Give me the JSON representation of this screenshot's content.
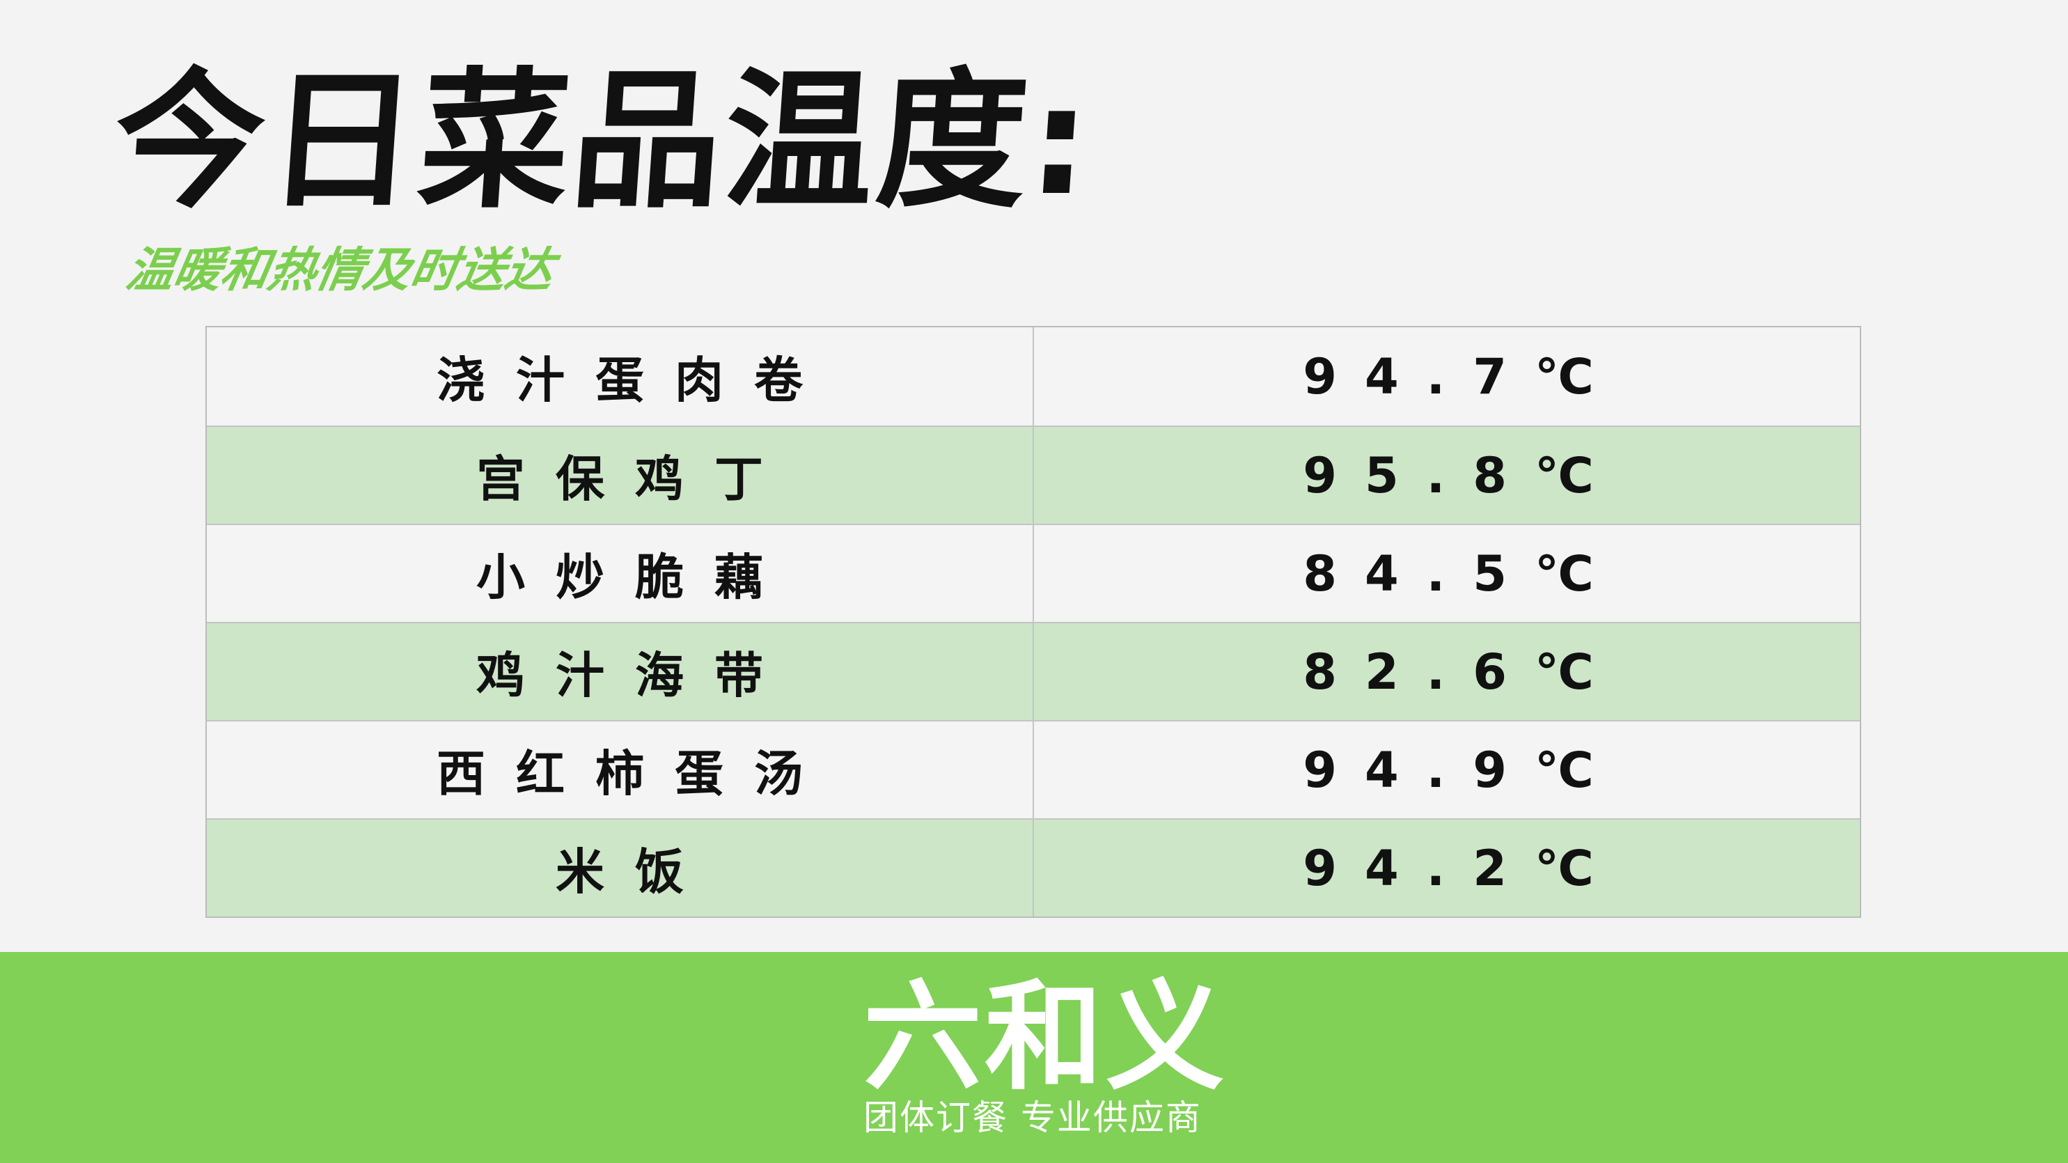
{
  "header": {
    "title": "今日菜品温度:",
    "subtitle": "温暖和热情及时送达"
  },
  "table": {
    "rows": [
      {
        "dish": "浇汁蛋肉卷",
        "temp": "94.7℃"
      },
      {
        "dish": "宫保鸡丁",
        "temp": "95.8℃"
      },
      {
        "dish": "小炒脆藕",
        "temp": "84.5℃"
      },
      {
        "dish": "鸡汁海带",
        "temp": "82.6℃"
      },
      {
        "dish": "西红柿蛋汤",
        "temp": "94.9℃"
      },
      {
        "dish": "米饭",
        "temp": "94.2℃"
      }
    ]
  },
  "footer": {
    "logo": "六和义",
    "tagline": "团体订餐 专业供应商"
  },
  "colors": {
    "accent": "#80d155",
    "row_alt": "#cde6c8"
  }
}
